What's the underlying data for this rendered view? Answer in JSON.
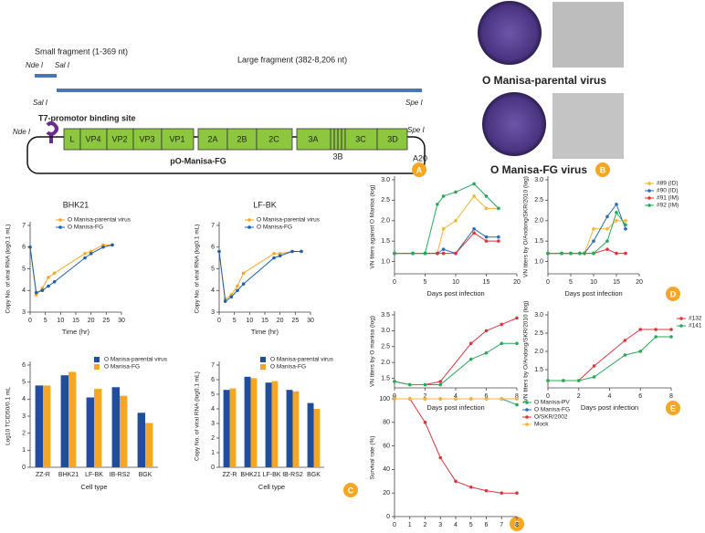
{
  "diagram": {
    "small_fragment": "Small fragment (1-369 nt)",
    "large_fragment": "Large fragment (382-8,206 nt)",
    "sites": [
      "Nde I",
      "Sal I",
      "Sal I",
      "Spe I",
      "Nde I",
      "Spe I"
    ],
    "promoter": "T7-promotor binding site",
    "plasmid": "pO-Manisa-FG",
    "genes": [
      "L",
      "VP4",
      "VP2",
      "VP3",
      "VP1",
      "2A",
      "2B",
      "2C",
      "3A",
      "3C",
      "3D"
    ],
    "gene_3b": "3B",
    "polya": "A20"
  },
  "images": {
    "labels": [
      "O Manisa-parental virus",
      "O Manisa-FG virus"
    ]
  },
  "panel_labels": [
    "A",
    "B",
    "C",
    "D",
    "E",
    "F"
  ],
  "chart_data": [
    {
      "type": "line",
      "title": "BHK21",
      "x": [
        0,
        2,
        4,
        6,
        8,
        18,
        20,
        24,
        27
      ],
      "series": [
        {
          "name": "O Manisa-parental virus",
          "color": "#f5a623",
          "values": [
            6.0,
            3.8,
            4.1,
            4.6,
            4.8,
            5.7,
            5.8,
            6.1,
            6.1
          ]
        },
        {
          "name": "O Manisa-FG",
          "color": "#1f5fa8",
          "values": [
            6.0,
            3.9,
            4.0,
            4.2,
            4.4,
            5.5,
            5.7,
            6.0,
            6.1
          ]
        }
      ],
      "xlim": [
        0,
        30
      ],
      "xticks": [
        0,
        5,
        10,
        15,
        20,
        25,
        30
      ],
      "ylim": [
        3,
        7
      ],
      "yticks": [
        3,
        4,
        5,
        6,
        7
      ],
      "xlabel": "Time (hr)",
      "ylabel": "Copy No. of viral RNA (log0.1 mL)",
      "legend": "upper right"
    },
    {
      "type": "line",
      "title": "LF-BK",
      "x": [
        0,
        2,
        4,
        6,
        8,
        18,
        20,
        24,
        27
      ],
      "series": [
        {
          "name": "O Manisa-parental virus",
          "color": "#f5a623",
          "values": [
            5.8,
            3.6,
            3.8,
            4.2,
            4.8,
            5.7,
            5.7,
            5.8,
            5.8
          ]
        },
        {
          "name": "O Manisa-FG",
          "color": "#1f5fa8",
          "values": [
            5.8,
            3.5,
            3.7,
            4.0,
            4.3,
            5.5,
            5.6,
            5.8,
            5.8
          ]
        }
      ],
      "xlim": [
        0,
        30
      ],
      "xticks": [
        0,
        5,
        10,
        15,
        20,
        25,
        30
      ],
      "ylim": [
        3,
        7
      ],
      "yticks": [
        3,
        4,
        5,
        6,
        7
      ],
      "xlabel": "Time (hr)",
      "ylabel": "Copy No. of viral RNA (log0.1 mL)",
      "legend": "upper right"
    },
    {
      "type": "bar",
      "categories": [
        "ZZ-R",
        "BHK21",
        "LF-BK",
        "IB-RS2",
        "BGK"
      ],
      "series": [
        {
          "name": "O Manisa-parental virus",
          "color": "#1f4e9c",
          "values": [
            4.8,
            5.4,
            4.1,
            4.7,
            3.2
          ]
        },
        {
          "name": "O Manisa-FG",
          "color": "#f5a623",
          "values": [
            4.8,
            5.6,
            4.6,
            4.2,
            2.6
          ]
        }
      ],
      "ylim": [
        0,
        6
      ],
      "yticks": [
        0,
        1,
        2,
        3,
        4,
        5,
        6
      ],
      "xlabel": "Cell type",
      "ylabel": "Log10 TCID50/0.1 mL",
      "legend": "upper right"
    },
    {
      "type": "bar",
      "categories": [
        "ZZ-R",
        "BHK21",
        "LF-BK",
        "IB-RS2",
        "BGK"
      ],
      "series": [
        {
          "name": "O Manisa-parental virus",
          "color": "#1f4e9c",
          "values": [
            5.3,
            6.2,
            5.8,
            5.3,
            4.4
          ]
        },
        {
          "name": "O Manisa-FG",
          "color": "#f5a623",
          "values": [
            5.4,
            6.1,
            5.9,
            5.2,
            4.0
          ]
        }
      ],
      "ylim": [
        0,
        7
      ],
      "yticks": [
        0,
        1,
        2,
        3,
        4,
        5,
        6,
        7
      ],
      "xlabel": "Cell type",
      "ylabel": "Copy No. of viral RNA (log0.1 mL)",
      "legend": "upper right"
    },
    {
      "type": "line",
      "x": [
        0,
        3,
        5,
        7,
        8,
        10,
        13,
        15,
        17
      ],
      "series": [
        {
          "color": "#f5b43c",
          "values": [
            1.2,
            1.2,
            1.2,
            1.2,
            1.8,
            2.0,
            2.6,
            2.3,
            2.3
          ]
        },
        {
          "color": "#2b6cb0",
          "values": [
            1.2,
            1.2,
            1.2,
            1.2,
            1.3,
            1.2,
            1.8,
            1.6,
            1.6
          ]
        },
        {
          "color": "#d9363e",
          "values": [
            1.2,
            1.2,
            1.2,
            1.2,
            1.2,
            1.2,
            1.7,
            1.5,
            1.5
          ]
        },
        {
          "color": "#2aa85a",
          "values": [
            1.2,
            1.2,
            1.2,
            2.4,
            2.6,
            2.7,
            2.9,
            2.6,
            2.3
          ]
        }
      ],
      "xlim": [
        0,
        20
      ],
      "xticks": [
        0,
        5,
        10,
        15,
        20
      ],
      "ylim": [
        0.7,
        3.0
      ],
      "yticks": [
        {
          "value": 1,
          "label": "1.0"
        },
        1.5,
        {
          "value": 2,
          "label": "2.0"
        },
        2.5,
        {
          "value": 3,
          "label": "3.0"
        }
      ],
      "xlabel": "Days post infection",
      "ylabel": "VN titers against O Manisa (log)"
    },
    {
      "type": "line",
      "x": [
        0,
        3,
        5,
        7,
        8,
        10,
        13,
        15,
        17
      ],
      "series": [
        {
          "name": "#89 (ID)",
          "color": "#f5b43c",
          "values": [
            1.2,
            1.2,
            1.2,
            1.2,
            1.2,
            1.8,
            1.8,
            2.0,
            2.0
          ]
        },
        {
          "name": "#90 (ID)",
          "color": "#2b6cb0",
          "values": [
            1.2,
            1.2,
            1.2,
            1.2,
            1.2,
            1.5,
            2.1,
            2.4,
            1.8
          ]
        },
        {
          "name": "#91 (IM)",
          "color": "#d9363e",
          "values": [
            1.2,
            1.2,
            1.2,
            1.2,
            1.2,
            1.2,
            1.3,
            1.2,
            1.2
          ]
        },
        {
          "name": "#92 (IM)",
          "color": "#2aa85a",
          "values": [
            1.2,
            1.2,
            1.2,
            1.2,
            1.2,
            1.2,
            1.5,
            2.2,
            1.9
          ]
        }
      ],
      "xlim": [
        0,
        20
      ],
      "xticks": [
        0,
        5,
        10,
        15,
        20
      ],
      "ylim": [
        0.7,
        3.0
      ],
      "yticks": [
        {
          "value": 1,
          "label": "1.0"
        },
        1.5,
        {
          "value": 2,
          "label": "2.0"
        },
        2.5,
        {
          "value": 3,
          "label": "3.0"
        }
      ],
      "xlabel": "Days post infection",
      "ylabel": "VN titers by O/Andong/SKR/2010 (log)",
      "legend": "right"
    },
    {
      "type": "line",
      "x": [
        0,
        1,
        2,
        3,
        5,
        6,
        7,
        8
      ],
      "series": [
        {
          "color": "#d9363e",
          "values": [
            1.4,
            1.3,
            1.3,
            1.4,
            2.6,
            3.0,
            3.2,
            3.4
          ]
        },
        {
          "color": "#2aa85a",
          "values": [
            1.4,
            1.3,
            1.3,
            1.3,
            2.1,
            2.3,
            2.6,
            2.6
          ]
        }
      ],
      "xlim": [
        0,
        8
      ],
      "xticks": [
        0,
        2,
        4,
        6,
        8
      ],
      "ylim": [
        1.2,
        3.5
      ],
      "yticks": [
        1.5,
        {
          "value": 2,
          "label": "2.0"
        },
        2.5,
        {
          "value": 3,
          "label": "3.0"
        },
        3.5
      ],
      "xlabel": "Days post infection",
      "ylabel": "VN titers by O manisa (log)"
    },
    {
      "type": "line",
      "x": [
        0,
        1,
        2,
        3,
        5,
        6,
        7,
        8
      ],
      "series": [
        {
          "name": "#132",
          "color": "#d9363e",
          "values": [
            1.2,
            1.2,
            1.2,
            1.6,
            2.3,
            2.6,
            2.6,
            2.6
          ]
        },
        {
          "name": "#141",
          "color": "#2aa85a",
          "values": [
            1.2,
            1.2,
            1.2,
            1.3,
            1.9,
            2.0,
            2.4,
            2.4
          ]
        }
      ],
      "xlim": [
        0,
        8
      ],
      "xticks": [
        0,
        2,
        4,
        6,
        8
      ],
      "ylim": [
        1.0,
        3.0
      ],
      "yticks": [
        1.5,
        {
          "value": 2,
          "label": "2.0"
        },
        2.5,
        {
          "value": 3,
          "label": "3.0"
        }
      ],
      "xlabel": "Days post infection",
      "ylabel": "VN titers by O/Andong/SKR/2010 (log)",
      "legend": "right"
    },
    {
      "type": "line",
      "x": [
        0,
        1,
        2,
        3,
        4,
        5,
        6,
        7,
        8
      ],
      "series": [
        {
          "name": "O Manisa-PV",
          "color": "#2aa85a",
          "values": [
            100,
            100,
            100,
            100,
            100,
            100,
            100,
            100,
            95
          ]
        },
        {
          "name": "O Manisa-FG",
          "color": "#2b6cb0",
          "values": [
            100,
            100,
            100,
            100,
            100,
            100,
            100,
            100,
            100
          ]
        },
        {
          "name": "O/SKR/2002",
          "color": "#d9363e",
          "values": [
            100,
            100,
            80,
            50,
            30,
            25,
            22,
            20,
            20
          ]
        },
        {
          "name": "Mock",
          "color": "#f5b43c",
          "values": [
            100,
            100,
            100,
            100,
            100,
            100,
            100,
            100,
            100
          ]
        }
      ],
      "xlim": [
        0,
        8
      ],
      "xticks": [
        0,
        1,
        2,
        3,
        4,
        5,
        6,
        7,
        8
      ],
      "ylim": [
        0,
        100
      ],
      "yticks": [
        0,
        20,
        40,
        60,
        80,
        100
      ],
      "xlabel": "Days post infection",
      "ylabel": "Survival rate (%)",
      "legend": "right"
    }
  ]
}
